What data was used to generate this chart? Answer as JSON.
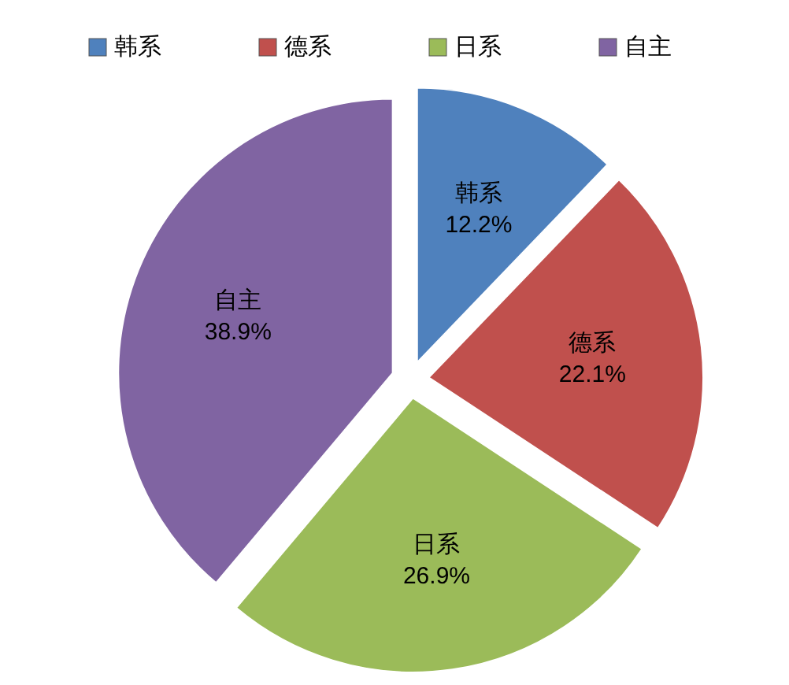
{
  "chart_data": {
    "type": "pie",
    "categories": [
      "韩系",
      "德系",
      "日系",
      "自主"
    ],
    "values": [
      12.2,
      22.1,
      26.9,
      38.9
    ],
    "value_labels": [
      "12.2%",
      "22.1%",
      "26.9%",
      "38.9%"
    ],
    "colors": [
      "#4f81bd",
      "#c0504d",
      "#9bbb59",
      "#8064a2"
    ],
    "legend": "top"
  }
}
